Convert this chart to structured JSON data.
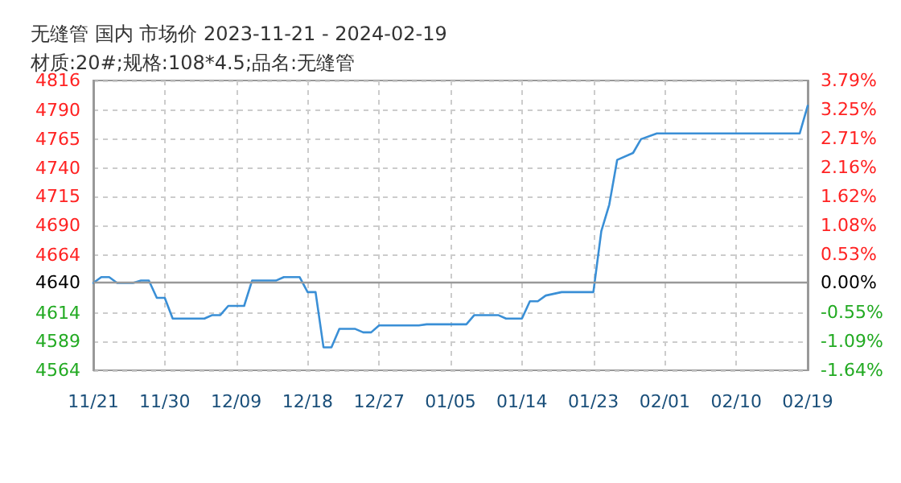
{
  "chart_data": {
    "type": "line",
    "title": "无缝管 国内 市场价 2023-11-21 - 2024-02-19",
    "subtitle": "材质:20#;规格:108*4.5;品名:无缝管",
    "x": [
      "2023-11-21",
      "2023-11-22",
      "2023-11-23",
      "2023-11-24",
      "2023-11-26",
      "2023-11-27",
      "2023-11-28",
      "2023-11-29",
      "2023-11-30",
      "2023-12-01",
      "2023-12-05",
      "2023-12-06",
      "2023-12-07",
      "2023-12-08",
      "2023-12-10",
      "2023-12-11",
      "2023-12-14",
      "2023-12-15",
      "2023-12-17",
      "2023-12-18",
      "2023-12-19",
      "2023-12-20",
      "2023-12-21",
      "2023-12-22",
      "2023-12-24",
      "2023-12-25",
      "2023-12-26",
      "2023-12-27",
      "2024-01-01",
      "2024-01-02",
      "2024-01-07",
      "2024-01-08",
      "2024-01-11",
      "2024-01-12",
      "2024-01-14",
      "2024-01-15",
      "2024-01-16",
      "2024-01-17",
      "2024-01-19",
      "2024-01-23",
      "2024-01-24",
      "2024-01-25",
      "2024-01-26",
      "2024-01-28",
      "2024-01-29",
      "2024-01-31",
      "2024-02-18",
      "2024-02-19"
    ],
    "series": [
      {
        "color": "#3a8fd6",
        "values": [
          4640,
          4645,
          4645,
          4640,
          4640,
          4642,
          4642,
          4627,
          4627,
          4609,
          4609,
          4612,
          4612,
          4620,
          4620,
          4642,
          4642,
          4645,
          4645,
          4632,
          4632,
          4584,
          4584,
          4600,
          4600,
          4597,
          4597,
          4603,
          4603,
          4604,
          4604,
          4612,
          4612,
          4609,
          4609,
          4624,
          4624,
          4629,
          4632,
          4632,
          4685,
          4708,
          4747,
          4753,
          4765,
          4770,
          4770,
          4794
        ]
      }
    ],
    "xlim": [
      "2023-11-21",
      "2024-02-19"
    ],
    "xticks": [
      {
        "value": "2023-11-21",
        "label": "11/21"
      },
      {
        "value": "2023-11-30",
        "label": "11/30"
      },
      {
        "value": "2023-12-09",
        "label": "12/09"
      },
      {
        "value": "2023-12-18",
        "label": "12/18"
      },
      {
        "value": "2023-12-27",
        "label": "12/27"
      },
      {
        "value": "2024-01-05",
        "label": "01/05"
      },
      {
        "value": "2024-01-14",
        "label": "01/14"
      },
      {
        "value": "2024-01-23",
        "label": "01/23"
      },
      {
        "value": "2024-02-01",
        "label": "02/01"
      },
      {
        "value": "2024-02-10",
        "label": "02/10"
      },
      {
        "value": "2024-02-19",
        "label": "02/19"
      }
    ],
    "ylim": [
      4564,
      4816
    ],
    "yticks": [
      4564,
      4589,
      4614,
      4640,
      4664,
      4690,
      4715,
      4740,
      4765,
      4790,
      4816
    ],
    "y2lim": [
      -1.64,
      3.79
    ],
    "y2ticks": [
      {
        "value": -1.64,
        "label": "-1.64%"
      },
      {
        "value": -1.09,
        "label": "-1.09%"
      },
      {
        "value": -0.55,
        "label": "-0.55%"
      },
      {
        "value": 0,
        "label": "0.00%"
      },
      {
        "value": 0.53,
        "label": "0.53%"
      },
      {
        "value": 1.08,
        "label": "1.08%"
      },
      {
        "value": 1.62,
        "label": "1.62%"
      },
      {
        "value": 2.16,
        "label": "2.16%"
      },
      {
        "value": 2.71,
        "label": "2.71%"
      },
      {
        "value": 3.25,
        "label": "3.25%"
      },
      {
        "value": 3.79,
        "label": "3.79%"
      }
    ],
    "ref_lines": [
      {
        "axis": "y",
        "value": 4640,
        "color": "#999999"
      }
    ],
    "grid": true,
    "marker": "none",
    "line_style": "solid"
  }
}
